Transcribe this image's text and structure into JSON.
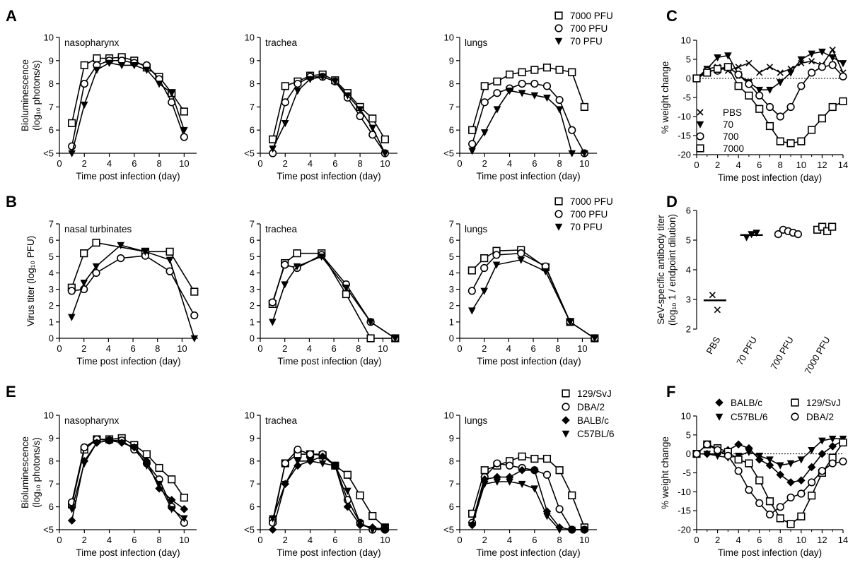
{
  "figure": {
    "panel_letters": [
      "A",
      "B",
      "C",
      "D",
      "E",
      "F"
    ]
  },
  "styles": {
    "line_color": "#000000",
    "background": "#ffffff"
  },
  "chart_data": [
    {
      "panel": "A",
      "type": "line",
      "title": "nasopharynx",
      "xlabel": "Time post infection (day)",
      "ylabel": "Bioluminescence (log10 photons/s)",
      "xlim": [
        0,
        11
      ],
      "ylim": [
        5,
        10
      ],
      "xticks": [
        "0",
        "2",
        "4",
        "6",
        "8",
        "10"
      ],
      "yticks": [
        "<5",
        "6",
        "7",
        "8",
        "9",
        "10"
      ],
      "x": [
        1,
        2,
        3,
        4,
        5,
        6,
        7,
        8,
        9,
        10
      ],
      "series": [
        {
          "name": "7000 PFU",
          "marker": "square",
          "values": [
            6.3,
            8.8,
            9.1,
            9.1,
            9.15,
            9.0,
            8.7,
            8.3,
            7.6,
            6.8
          ]
        },
        {
          "name": "700 PFU",
          "marker": "circle",
          "values": [
            5.3,
            8.0,
            8.8,
            9.0,
            9.0,
            8.9,
            8.8,
            8.2,
            7.2,
            5.7
          ]
        },
        {
          "name": "70 PFU",
          "marker": "triangle-down",
          "values": [
            5.0,
            7.1,
            8.6,
            8.9,
            8.8,
            8.8,
            8.6,
            8.0,
            7.6,
            6.0
          ]
        }
      ]
    },
    {
      "panel": "A",
      "type": "line",
      "title": "trachea",
      "xlabel": "Time post infection (day)",
      "ylabel": "",
      "xlim": [
        0,
        11
      ],
      "ylim": [
        5,
        10
      ],
      "xticks": [
        "0",
        "2",
        "4",
        "6",
        "8",
        "10"
      ],
      "yticks": [
        "<5",
        "6",
        "7",
        "8",
        "9",
        "10"
      ],
      "x": [
        1,
        2,
        3,
        4,
        5,
        6,
        7,
        8,
        9,
        10
      ],
      "series": [
        {
          "name": "7000 PFU",
          "marker": "square",
          "values": [
            5.6,
            7.9,
            8.1,
            8.35,
            8.4,
            8.15,
            7.6,
            7.0,
            6.5,
            5.6
          ]
        },
        {
          "name": "700 PFU",
          "marker": "circle",
          "values": [
            5.0,
            7.2,
            8.0,
            8.3,
            8.3,
            8.1,
            7.4,
            6.6,
            5.8,
            5.0
          ]
        },
        {
          "name": "70 PFU",
          "marker": "triangle-down",
          "values": [
            5.2,
            6.3,
            7.7,
            8.2,
            8.3,
            8.1,
            7.5,
            6.9,
            6.1,
            5.0
          ]
        }
      ]
    },
    {
      "panel": "A",
      "type": "line",
      "title": "lungs",
      "xlabel": "Time post infection (day)",
      "ylabel": "",
      "xlim": [
        0,
        11
      ],
      "ylim": [
        5,
        10
      ],
      "xticks": [
        "0",
        "2",
        "4",
        "6",
        "8",
        "10"
      ],
      "yticks": [
        "<5",
        "6",
        "7",
        "8",
        "9",
        "10"
      ],
      "x": [
        1,
        2,
        3,
        4,
        5,
        6,
        7,
        8,
        9,
        10
      ],
      "series": [
        {
          "name": "7000 PFU",
          "marker": "square",
          "values": [
            6.0,
            7.9,
            8.1,
            8.4,
            8.5,
            8.6,
            8.7,
            8.6,
            8.5,
            7.0
          ]
        },
        {
          "name": "700 PFU",
          "marker": "circle",
          "values": [
            5.4,
            7.2,
            7.6,
            7.8,
            8.0,
            8.0,
            7.9,
            7.3,
            6.0,
            5.0
          ]
        },
        {
          "name": "70 PFU",
          "marker": "triangle-down",
          "values": [
            5.1,
            5.9,
            6.9,
            7.7,
            7.6,
            7.5,
            7.4,
            6.9,
            5.0,
            5.0
          ]
        }
      ]
    },
    {
      "panel": "B",
      "type": "line",
      "title": "nasal turbinates",
      "xlabel": "Time post infection (day)",
      "ylabel": "Virus titer (log10 PFU)",
      "xlim": [
        0,
        11.3
      ],
      "ylim": [
        0,
        7
      ],
      "xticks": [
        "0",
        "2",
        "4",
        "6",
        "8",
        "10"
      ],
      "yticks": [
        "0",
        "1",
        "2",
        "3",
        "4",
        "5",
        "6",
        "7"
      ],
      "x": [
        1,
        2,
        3,
        5,
        7,
        9,
        11
      ],
      "series": [
        {
          "name": "7000 PFU",
          "marker": "square",
          "values": [
            3.1,
            5.2,
            5.85,
            null,
            5.3,
            5.3,
            2.85
          ]
        },
        {
          "name": "700 PFU",
          "marker": "circle",
          "values": [
            2.9,
            3.0,
            4.0,
            4.9,
            5.05,
            4.1,
            1.4
          ]
        },
        {
          "name": "70 PFU",
          "marker": "triangle-down",
          "values": [
            1.3,
            3.4,
            4.4,
            5.7,
            5.3,
            4.8,
            0.0
          ]
        }
      ]
    },
    {
      "panel": "B",
      "type": "line",
      "title": "trachea",
      "xlabel": "Time post infection (day)",
      "ylabel": "",
      "xlim": [
        0,
        11.3
      ],
      "ylim": [
        0,
        7
      ],
      "xticks": [
        "0",
        "2",
        "4",
        "6",
        "8",
        "10"
      ],
      "yticks": [
        "0",
        "1",
        "2",
        "3",
        "4",
        "5",
        "6",
        "7"
      ],
      "x": [
        1,
        2,
        3,
        5,
        7,
        9,
        11
      ],
      "series": [
        {
          "name": "7000 PFU",
          "marker": "square",
          "values": [
            2.1,
            4.6,
            5.2,
            5.2,
            2.7,
            0.0,
            0.0
          ]
        },
        {
          "name": "700 PFU",
          "marker": "circle",
          "values": [
            2.2,
            4.5,
            4.3,
            5.1,
            3.3,
            1.0,
            0.0
          ]
        },
        {
          "name": "70 PFU",
          "marker": "triangle-down",
          "values": [
            1.0,
            3.3,
            4.4,
            5.0,
            3.1,
            1.0,
            0.0
          ]
        }
      ]
    },
    {
      "panel": "B",
      "type": "line",
      "title": "lungs",
      "xlabel": "Time post infection (day)",
      "ylabel": "",
      "xlim": [
        0,
        11.3
      ],
      "ylim": [
        0,
        7
      ],
      "xticks": [
        "0",
        "2",
        "4",
        "6",
        "8",
        "10"
      ],
      "yticks": [
        "0",
        "1",
        "2",
        "3",
        "4",
        "5",
        "6",
        "7"
      ],
      "x": [
        1,
        2,
        3,
        5,
        7,
        9,
        11
      ],
      "series": [
        {
          "name": "7000 PFU",
          "marker": "square",
          "values": [
            4.15,
            4.9,
            5.35,
            5.4,
            4.35,
            1.0,
            0.0
          ]
        },
        {
          "name": "700 PFU",
          "marker": "circle",
          "values": [
            2.9,
            4.3,
            5.1,
            5.2,
            4.4,
            1.0,
            0.0
          ]
        },
        {
          "name": "70 PFU",
          "marker": "triangle-down",
          "values": [
            1.7,
            2.9,
            4.5,
            4.8,
            4.1,
            1.0,
            0.0
          ]
        }
      ]
    },
    {
      "panel": "C",
      "type": "line",
      "title": "",
      "xlabel": "Time post infection (day)",
      "ylabel": "% weight change",
      "xlim": [
        0,
        14
      ],
      "ylim": [
        -20,
        10
      ],
      "zero_line": true,
      "xticks": [
        "0",
        "2",
        "4",
        "6",
        "8",
        "10",
        "12",
        "14"
      ],
      "yticks": [
        "-20",
        "-15",
        "-10",
        "-5",
        "0",
        "5",
        "10"
      ],
      "x": [
        0,
        1,
        2,
        3,
        4,
        5,
        6,
        7,
        8,
        9,
        10,
        11,
        12,
        13,
        14
      ],
      "series": [
        {
          "name": "PBS",
          "marker": "x",
          "values": [
            0,
            2.5,
            3.0,
            2.0,
            3.0,
            4.0,
            1.5,
            3.0,
            1.5,
            2.5,
            4.0,
            4.5,
            3.5,
            7.5,
            1.5
          ]
        },
        {
          "name": "70",
          "marker": "triangle-down",
          "values": [
            0,
            2.5,
            5.5,
            6.0,
            1.0,
            -1.0,
            -3.0,
            -3.0,
            -1.0,
            1.5,
            5.0,
            6.5,
            7.0,
            5.5,
            4.0
          ]
        },
        {
          "name": "700",
          "marker": "circle",
          "values": [
            0,
            2.0,
            2.0,
            3.0,
            1.0,
            -1.5,
            -4.5,
            -7.5,
            -10.0,
            -7.5,
            -2.0,
            1.5,
            3.0,
            3.5,
            0.5
          ]
        },
        {
          "name": "7000",
          "marker": "square",
          "values": [
            0,
            1.5,
            2.5,
            3.0,
            -2.0,
            -4.5,
            -8.0,
            -12.5,
            -16.5,
            -17.0,
            -16.5,
            -13.5,
            -10.5,
            -7.5,
            -6.0
          ]
        }
      ]
    },
    {
      "panel": "D",
      "type": "scatter",
      "title": "",
      "xlabel": "",
      "ylabel": "SeV-specific antibody titer (log10 1 / endpoint dilution)",
      "ylim": [
        2,
        6
      ],
      "yticks": [
        "2",
        "3",
        "4",
        "5",
        "6"
      ],
      "categories": [
        "PBS",
        "70 PFU",
        "700 PFU",
        "7000 PFU"
      ],
      "markers": [
        "x",
        "triangle-down",
        "circle",
        "square"
      ],
      "points": [
        [
          3.15,
          2.65
        ],
        [
          5.1,
          5.2,
          5.25
        ],
        [
          5.2,
          5.35,
          5.3,
          5.25,
          5.2
        ],
        [
          5.35,
          5.45,
          5.3,
          5.45
        ]
      ],
      "means": [
        2.97,
        5.17,
        5.28,
        5.38
      ]
    },
    {
      "panel": "E",
      "type": "line",
      "title": "nasopharynx",
      "xlabel": "Time post infection (day)",
      "ylabel": "Bioluminescence (log10 photons/s)",
      "xlim": [
        0,
        11
      ],
      "ylim": [
        5,
        10
      ],
      "xticks": [
        "0",
        "2",
        "4",
        "6",
        "8",
        "10"
      ],
      "yticks": [
        "<5",
        "6",
        "7",
        "8",
        "9",
        "10"
      ],
      "x": [
        1,
        2,
        3,
        4,
        5,
        6,
        7,
        8,
        9,
        10
      ],
      "series": [
        {
          "name": "129/SvJ",
          "marker": "square",
          "values": [
            6.1,
            8.5,
            8.95,
            8.95,
            9.0,
            8.7,
            8.3,
            7.7,
            7.2,
            6.4
          ]
        },
        {
          "name": "DBA/2",
          "marker": "circle",
          "values": [
            6.2,
            8.6,
            8.95,
            8.9,
            8.9,
            8.5,
            7.9,
            7.2,
            6.0,
            5.3
          ]
        },
        {
          "name": "BALB/c",
          "marker": "diamond",
          "values": [
            5.4,
            8.0,
            8.8,
            8.9,
            8.8,
            8.6,
            8.0,
            6.8,
            6.3,
            5.9
          ]
        },
        {
          "name": "C57BL/6",
          "marker": "triangle-down",
          "values": [
            5.9,
            7.9,
            8.8,
            8.9,
            8.8,
            8.6,
            7.8,
            7.0,
            5.9,
            5.5
          ]
        }
      ]
    },
    {
      "panel": "E",
      "type": "line",
      "title": "trachea",
      "xlabel": "Time post infection (day)",
      "ylabel": "",
      "xlim": [
        0,
        11
      ],
      "ylim": [
        5,
        10
      ],
      "xticks": [
        "0",
        "2",
        "4",
        "6",
        "8",
        "10"
      ],
      "yticks": [
        "<5",
        "6",
        "7",
        "8",
        "9",
        "10"
      ],
      "x": [
        1,
        2,
        3,
        4,
        5,
        6,
        7,
        8,
        9,
        10
      ],
      "series": [
        {
          "name": "129/SvJ",
          "marker": "square",
          "values": [
            5.4,
            7.9,
            8.3,
            8.3,
            8.25,
            7.8,
            7.4,
            6.5,
            5.6,
            5.1
          ]
        },
        {
          "name": "DBA/2",
          "marker": "circle",
          "values": [
            5.3,
            7.9,
            8.5,
            8.3,
            8.3,
            7.8,
            6.3,
            5.3,
            5.0,
            5.0
          ]
        },
        {
          "name": "BALB/c",
          "marker": "diamond",
          "values": [
            5.0,
            7.0,
            7.8,
            8.0,
            8.2,
            7.8,
            6.0,
            5.2,
            5.1,
            5.0
          ]
        },
        {
          "name": "C57BL/6",
          "marker": "triangle-down",
          "values": [
            5.5,
            7.0,
            8.0,
            8.0,
            7.9,
            7.8,
            6.7,
            5.3,
            5.0,
            5.1
          ]
        }
      ]
    },
    {
      "panel": "E",
      "type": "line",
      "title": "lungs",
      "xlabel": "Time post infection (day)",
      "ylabel": "",
      "xlim": [
        0,
        11
      ],
      "ylim": [
        5,
        10
      ],
      "xticks": [
        "0",
        "2",
        "4",
        "6",
        "8",
        "10"
      ],
      "yticks": [
        "<5",
        "6",
        "7",
        "8",
        "9",
        "10"
      ],
      "x": [
        1,
        2,
        3,
        4,
        5,
        6,
        7,
        8,
        9,
        10
      ],
      "series": [
        {
          "name": "129/SvJ",
          "marker": "square",
          "values": [
            5.7,
            7.6,
            7.8,
            8.0,
            8.2,
            8.1,
            8.1,
            7.6,
            6.5,
            5.1
          ]
        },
        {
          "name": "DBA/2",
          "marker": "circle",
          "values": [
            5.3,
            7.3,
            7.9,
            7.8,
            7.7,
            7.6,
            7.4,
            5.9,
            5.0,
            5.0
          ]
        },
        {
          "name": "BALB/c",
          "marker": "diamond",
          "values": [
            5.2,
            7.2,
            7.3,
            7.3,
            7.6,
            7.6,
            5.8,
            5.1,
            5.0,
            5.0
          ]
        },
        {
          "name": "C57BL/6",
          "marker": "triangle-down",
          "values": [
            5.2,
            7.0,
            7.1,
            7.1,
            7.0,
            6.8,
            5.6,
            5.0,
            5.0,
            5.0
          ]
        }
      ]
    },
    {
      "panel": "F",
      "type": "line",
      "title": "",
      "xlabel": "Time post infection   (day)",
      "ylabel": "% weight change",
      "xlim": [
        0,
        14
      ],
      "ylim": [
        -20,
        10
      ],
      "zero_line": true,
      "xticks": [
        "0",
        "2",
        "4",
        "6",
        "8",
        "10",
        "12",
        "14"
      ],
      "yticks": [
        "-20",
        "-15",
        "-10",
        "-5",
        "0",
        "5",
        "10"
      ],
      "x": [
        0,
        1,
        2,
        3,
        4,
        5,
        6,
        7,
        8,
        9,
        10,
        11,
        12,
        13,
        14
      ],
      "series": [
        {
          "name": "BALB/c",
          "marker": "diamond",
          "values": [
            0,
            0,
            0,
            1.0,
            2.5,
            1.5,
            -1.5,
            -3.0,
            -5.5,
            -7.5,
            -7.0,
            -3.5,
            0,
            2.0,
            3.5
          ]
        },
        {
          "name": "C57BL/6",
          "marker": "triangle-down",
          "values": [
            0,
            0,
            -0.5,
            -1.0,
            -0.5,
            0.5,
            -0.5,
            -1.5,
            -3.0,
            -2.5,
            -1.5,
            1.0,
            3.5,
            4.0,
            4.0
          ]
        },
        {
          "name": "129/SvJ",
          "marker": "square",
          "values": [
            0,
            2.5,
            1.5,
            0.5,
            -1.5,
            -2.5,
            -7.0,
            -12.5,
            -17.0,
            -18.5,
            -16.5,
            -11.0,
            -5.0,
            -1.0,
            3.0
          ]
        },
        {
          "name": "DBA/2",
          "marker": "circle",
          "values": [
            0,
            2.5,
            1.0,
            -0.5,
            -4.5,
            -9.5,
            -13.0,
            -16.0,
            -14.0,
            -11.5,
            -10.5,
            -7.5,
            -4.5,
            -2.5,
            -2.0
          ]
        }
      ]
    }
  ]
}
